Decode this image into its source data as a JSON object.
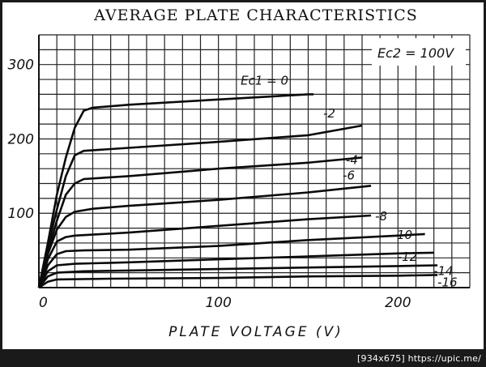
{
  "chart_data": {
    "type": "line",
    "title": "AVERAGE PLATE CHARACTERISTICS",
    "xlabel": "PLATE VOLTAGE (V)",
    "ylabel": "",
    "condition_label": "Ec2 = 100V",
    "xlim": [
      0,
      240
    ],
    "ylim": [
      0,
      340
    ],
    "x_ticks": [
      "0",
      "100",
      "200"
    ],
    "y_ticks": [
      "100",
      "200",
      "300"
    ],
    "x_tick_values": [
      0,
      100,
      200
    ],
    "y_tick_values": [
      100,
      200,
      300
    ],
    "grid": true,
    "series": [
      {
        "name": "Ec1 = 0",
        "label": "Ec1 = 0",
        "points": [
          [
            0,
            0
          ],
          [
            5,
            60
          ],
          [
            10,
            125
          ],
          [
            15,
            175
          ],
          [
            20,
            215
          ],
          [
            25,
            238
          ],
          [
            30,
            242
          ],
          [
            50,
            246
          ],
          [
            100,
            253
          ],
          [
            150,
            260
          ],
          [
            153,
            260
          ]
        ]
      },
      {
        "name": "-2",
        "label": "-2",
        "points": [
          [
            0,
            0
          ],
          [
            5,
            55
          ],
          [
            10,
            105
          ],
          [
            15,
            150
          ],
          [
            20,
            178
          ],
          [
            25,
            184
          ],
          [
            50,
            188
          ],
          [
            100,
            196
          ],
          [
            150,
            205
          ],
          [
            180,
            218
          ]
        ]
      },
      {
        "name": "-4",
        "label": "-4",
        "points": [
          [
            0,
            0
          ],
          [
            5,
            48
          ],
          [
            10,
            90
          ],
          [
            15,
            125
          ],
          [
            20,
            140
          ],
          [
            25,
            146
          ],
          [
            50,
            150
          ],
          [
            100,
            160
          ],
          [
            150,
            168
          ],
          [
            180,
            175
          ]
        ]
      },
      {
        "name": "-6",
        "label": "-6",
        "points": [
          [
            0,
            0
          ],
          [
            5,
            45
          ],
          [
            10,
            78
          ],
          [
            15,
            95
          ],
          [
            20,
            102
          ],
          [
            30,
            106
          ],
          [
            50,
            110
          ],
          [
            100,
            118
          ],
          [
            150,
            128
          ],
          [
            185,
            137
          ]
        ]
      },
      {
        "name": "-8",
        "label": "-8",
        "points": [
          [
            0,
            0
          ],
          [
            5,
            38
          ],
          [
            10,
            62
          ],
          [
            15,
            68
          ],
          [
            20,
            70
          ],
          [
            50,
            74
          ],
          [
            100,
            83
          ],
          [
            150,
            92
          ],
          [
            185,
            97
          ]
        ]
      },
      {
        "name": "-10",
        "label": "-10",
        "points": [
          [
            0,
            0
          ],
          [
            5,
            30
          ],
          [
            10,
            45
          ],
          [
            15,
            49
          ],
          [
            25,
            50
          ],
          [
            50,
            51
          ],
          [
            100,
            56
          ],
          [
            150,
            64
          ],
          [
            200,
            70
          ],
          [
            215,
            72
          ]
        ]
      },
      {
        "name": "-12",
        "label": "-12",
        "points": [
          [
            0,
            0
          ],
          [
            5,
            22
          ],
          [
            10,
            30
          ],
          [
            20,
            32
          ],
          [
            50,
            34
          ],
          [
            100,
            38
          ],
          [
            150,
            42
          ],
          [
            200,
            46
          ],
          [
            220,
            47
          ]
        ]
      },
      {
        "name": "-14",
        "label": "-14",
        "points": [
          [
            0,
            0
          ],
          [
            5,
            15
          ],
          [
            10,
            20
          ],
          [
            25,
            22
          ],
          [
            50,
            23
          ],
          [
            100,
            25
          ],
          [
            150,
            27
          ],
          [
            200,
            29
          ],
          [
            222,
            30
          ]
        ]
      },
      {
        "name": "-16",
        "label": "-16",
        "points": [
          [
            0,
            0
          ],
          [
            5,
            8
          ],
          [
            10,
            11
          ],
          [
            40,
            12
          ],
          [
            100,
            13
          ],
          [
            150,
            15
          ],
          [
            200,
            16
          ],
          [
            222,
            17
          ]
        ]
      }
    ]
  },
  "footer": {
    "tag": "[934x675] https://upic.me/"
  }
}
